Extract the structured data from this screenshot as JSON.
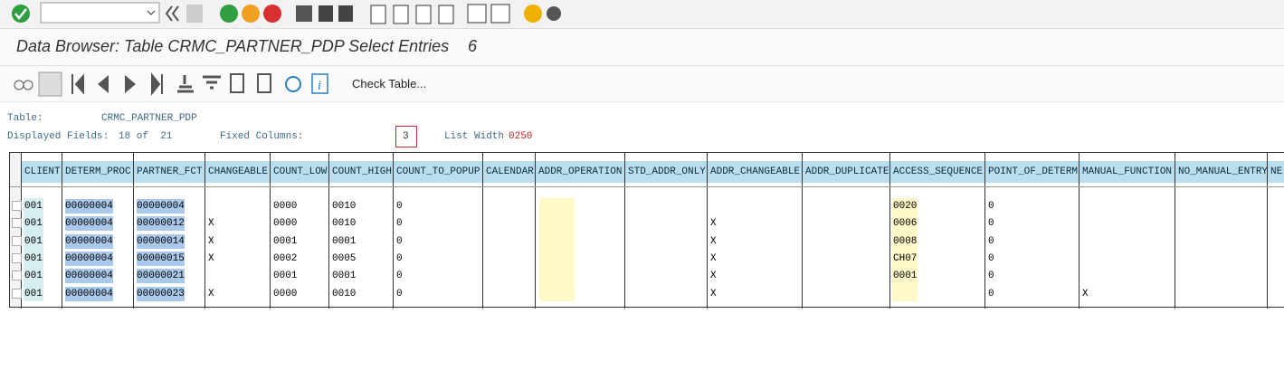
{
  "header": {
    "title": "Data Browser: Table CRMC_PARTNER_PDP Select Entries",
    "count": "6"
  },
  "toolbar": {
    "check_table": "Check Table..."
  },
  "info": {
    "table_label": "Table:",
    "table_name": "CRMC_PARTNER_PDP",
    "fields_label": "Displayed Fields:",
    "fields_value": "18 of  21",
    "fixed_label": "Fixed Columns:",
    "fixed_value": "3",
    "width_label": "List Width",
    "width_value": "0250"
  },
  "table": {
    "columns": [
      "CLIENT",
      "DETERM_PROC",
      "PARTNER_FCT",
      "CHANGEABLE",
      "COUNT_LOW",
      "COUNT_HIGH",
      "COUNT_TO_POPUP",
      "CALENDAR",
      "ADDR_OPERATION",
      "STD_ADDR_ONLY",
      "ADDR_CHANGEABLE",
      "ADDR_DUPLICATE",
      "ACCESS_SEQUENCE",
      "POINT_OF_DETERM",
      "MANUAL_FUNCTION",
      "NO_MANUAL_ENTRY",
      "NE"
    ],
    "rows": [
      [
        "001",
        "00000004",
        "00000004",
        null,
        "0000",
        "0010",
        "0",
        null,
        null,
        null,
        null,
        null,
        "0020",
        "0",
        null,
        null,
        null
      ],
      [
        "001",
        "00000004",
        "00000012",
        "X",
        "0000",
        "0010",
        "0",
        null,
        null,
        null,
        "X",
        null,
        "0006",
        "0",
        null,
        null,
        null
      ],
      [
        "001",
        "00000004",
        "00000014",
        "X",
        "0001",
        "0001",
        "0",
        null,
        null,
        null,
        "X",
        null,
        "0008",
        "0",
        null,
        null,
        null
      ],
      [
        "001",
        "00000004",
        "00000015",
        "X",
        "0002",
        "0005",
        "0",
        null,
        null,
        null,
        "X",
        null,
        "CH07",
        "0",
        null,
        null,
        null
      ],
      [
        "001",
        "00000004",
        "00000021",
        null,
        "0001",
        "0001",
        "0",
        null,
        null,
        null,
        "X",
        null,
        "0001",
        "0",
        null,
        null,
        null
      ],
      [
        "001",
        "00000004",
        "00000023",
        "X",
        "0000",
        "0010",
        "0",
        null,
        null,
        null,
        "X",
        null,
        null,
        "0",
        "X",
        null,
        null
      ]
    ]
  }
}
